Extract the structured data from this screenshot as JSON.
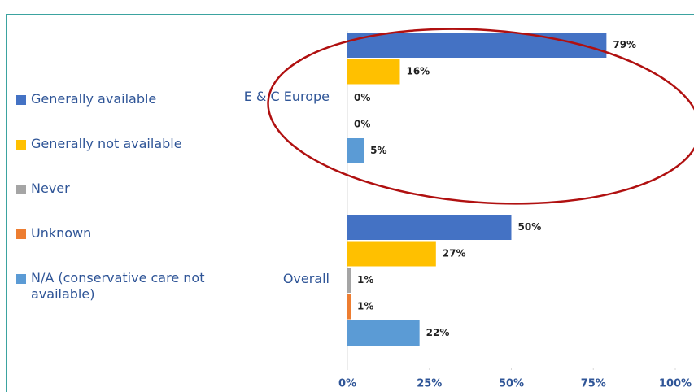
{
  "chart_data": {
    "type": "bar",
    "orientation": "horizontal",
    "categories": [
      "E & C Europe",
      "Overall"
    ],
    "series": [
      {
        "name": "Generally available",
        "color": "#4472c4",
        "values": [
          79,
          50
        ],
        "value_labels": [
          "79%",
          "50%"
        ]
      },
      {
        "name": "Generally not available",
        "color": "#ffc000",
        "values": [
          16,
          27
        ],
        "value_labels": [
          "16%",
          "27%"
        ]
      },
      {
        "name": "Never",
        "color": "#a5a5a5",
        "values": [
          0,
          1
        ],
        "value_labels": [
          "0%",
          "1%"
        ]
      },
      {
        "name": "Unknown",
        "color": "#ed7d31",
        "values": [
          0,
          1
        ],
        "value_labels": [
          "0%",
          "1%"
        ]
      },
      {
        "name": "N/A (conservative care not available)",
        "color": "#5b9bd5",
        "values": [
          5,
          22
        ],
        "value_labels": [
          "5%",
          "22%"
        ]
      }
    ],
    "xlim": [
      0,
      100
    ],
    "xticks": [
      {
        "value": 0,
        "label": "0%"
      },
      {
        "value": 25,
        "label": "25%"
      },
      {
        "value": 50,
        "label": "50%"
      },
      {
        "value": 75,
        "label": "75%"
      },
      {
        "value": 100,
        "label": "100%"
      }
    ],
    "legend": "left"
  }
}
